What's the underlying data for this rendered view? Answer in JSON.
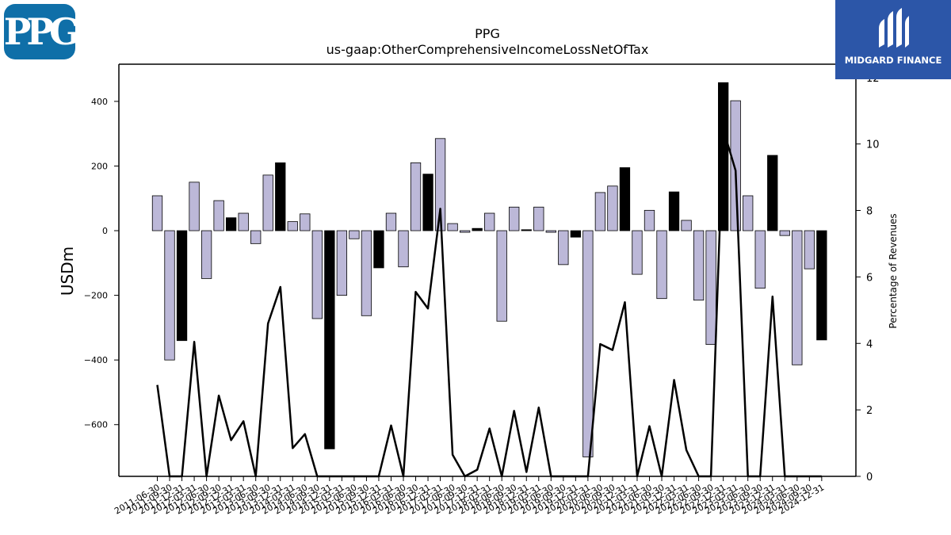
{
  "chart_data": {
    "type": "bar",
    "title": "PPG",
    "subtitle": "us-gaap:OtherComprehensiveIncomeLossNetOfTax",
    "ylabel": "USDm",
    "y2label": "Percentage of Revenues",
    "ylim": [
      -760,
      515
    ],
    "y2lim": [
      0,
      12.4
    ],
    "yticks": [
      "400",
      "200",
      "0",
      "−200",
      "−400",
      "−600"
    ],
    "ytick_values": [
      400,
      200,
      0,
      -200,
      -400,
      -600
    ],
    "y2ticks": [
      0,
      2,
      4,
      6,
      8,
      10,
      12
    ],
    "categories": [
      "2011-06-30",
      "2011-09-30",
      "2011-12-31",
      "2012-03-31",
      "2012-06-30",
      "2012-09-30",
      "2012-12-31",
      "2013-03-31",
      "2013-06-30",
      "2013-09-30",
      "2013-12-31",
      "2014-03-31",
      "2014-06-30",
      "2014-09-30",
      "2014-12-31",
      "2015-03-31",
      "2015-06-30",
      "2015-09-30",
      "2015-12-31",
      "2016-03-31",
      "2016-06-30",
      "2016-09-30",
      "2016-12-31",
      "2017-03-31",
      "2017-06-30",
      "2017-09-30",
      "2017-12-31",
      "2018-03-31",
      "2018-06-30",
      "2018-09-30",
      "2018-12-31",
      "2019-03-31",
      "2019-06-30",
      "2019-09-30",
      "2019-12-31",
      "2020-03-31",
      "2020-06-30",
      "2020-09-30",
      "2020-12-31",
      "2021-03-31",
      "2021-06-30",
      "2021-09-30",
      "2021-12-31",
      "2022-03-31",
      "2022-06-30",
      "2022-09-30",
      "2022-12-31",
      "2023-03-31",
      "2023-06-30",
      "2023-09-30",
      "2023-12-31",
      "2024-03-31",
      "2024-06-30",
      "2024-09-30",
      "2024-12-31"
    ],
    "values": [
      108,
      -400,
      -340,
      150,
      -148,
      93,
      40,
      54,
      -40,
      172,
      210,
      28,
      52,
      -272,
      -675,
      -200,
      -25,
      -263,
      -115,
      54,
      -112,
      210,
      175,
      285,
      22,
      -5,
      7,
      54,
      -280,
      73,
      3,
      73,
      -5,
      -105,
      -20,
      -700,
      118,
      138,
      195,
      -135,
      63,
      -210,
      120,
      32,
      -215,
      -352,
      458,
      402,
      108,
      -178,
      233,
      -15,
      -415,
      -118,
      -338
    ],
    "highlight": [
      false,
      false,
      true,
      false,
      false,
      false,
      true,
      false,
      false,
      false,
      true,
      false,
      false,
      false,
      true,
      false,
      false,
      false,
      true,
      false,
      false,
      false,
      true,
      false,
      false,
      false,
      true,
      false,
      false,
      false,
      true,
      false,
      false,
      false,
      true,
      false,
      false,
      false,
      true,
      false,
      false,
      false,
      true,
      false,
      false,
      false,
      true,
      false,
      false,
      false,
      true,
      false,
      false,
      false,
      true
    ],
    "line_series": {
      "name": "",
      "values": [
        2.75,
        0,
        0,
        4.05,
        0,
        2.43,
        1.09,
        1.66,
        0,
        4.6,
        5.7,
        0.85,
        1.27,
        0,
        0,
        0,
        0,
        0,
        0,
        1.53,
        0,
        5.55,
        5.05,
        8.05,
        0.65,
        0,
        0.2,
        1.44,
        0,
        1.97,
        0.13,
        2.07,
        0,
        0,
        0,
        0,
        3.98,
        3.8,
        5.24,
        0,
        1.51,
        0,
        2.9,
        0.79,
        0,
        0,
        10.45,
        9.2,
        0,
        0,
        5.41,
        0,
        0,
        0,
        0
      ]
    },
    "colors": {
      "bar": "#bcb8d8",
      "bar_highlight": "#000000",
      "line": "#000000"
    }
  },
  "logos": {
    "left": "PPG",
    "right": "MIDGARD FINANCE"
  }
}
